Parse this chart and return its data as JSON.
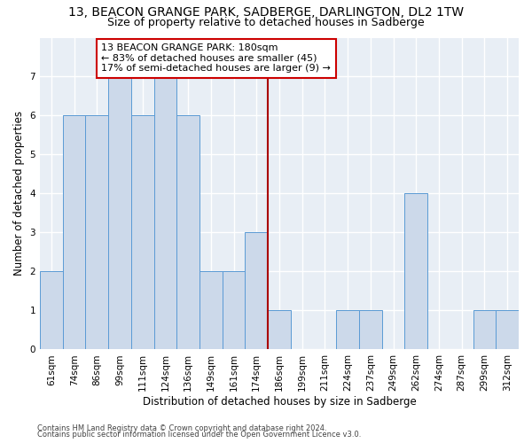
{
  "title1": "13, BEACON GRANGE PARK, SADBERGE, DARLINGTON, DL2 1TW",
  "title2": "Size of property relative to detached houses in Sadberge",
  "xlabel": "Distribution of detached houses by size in Sadberge",
  "ylabel": "Number of detached properties",
  "footer1": "Contains HM Land Registry data © Crown copyright and database right 2024.",
  "footer2": "Contains public sector information licensed under the Open Government Licence v3.0.",
  "categories": [
    "61sqm",
    "74sqm",
    "86sqm",
    "99sqm",
    "111sqm",
    "124sqm",
    "136sqm",
    "149sqm",
    "161sqm",
    "174sqm",
    "186sqm",
    "199sqm",
    "211sqm",
    "224sqm",
    "237sqm",
    "249sqm",
    "262sqm",
    "274sqm",
    "287sqm",
    "299sqm",
    "312sqm"
  ],
  "values": [
    2,
    6,
    6,
    7,
    6,
    7,
    6,
    2,
    2,
    3,
    1,
    0,
    0,
    1,
    1,
    0,
    4,
    0,
    0,
    1,
    1
  ],
  "bar_color": "#ccd9ea",
  "bar_edge_color": "#5b9bd5",
  "ylim_max": 8,
  "yticks": [
    0,
    1,
    2,
    3,
    4,
    5,
    6,
    7
  ],
  "vline_x_idx": 9.5,
  "vline_color": "#aa0000",
  "annotation_line1": "13 BEACON GRANGE PARK: 180sqm",
  "annotation_line2": "← 83% of detached houses are smaller (45)",
  "annotation_line3": "17% of semi-detached houses are larger (9) →",
  "bg_color": "#e8eef5",
  "grid_color": "#ffffff",
  "title1_fontsize": 10,
  "title2_fontsize": 9,
  "xlabel_fontsize": 8.5,
  "ylabel_fontsize": 8.5,
  "tick_fontsize": 7.5,
  "annotation_fontsize": 8,
  "footer_fontsize": 6
}
